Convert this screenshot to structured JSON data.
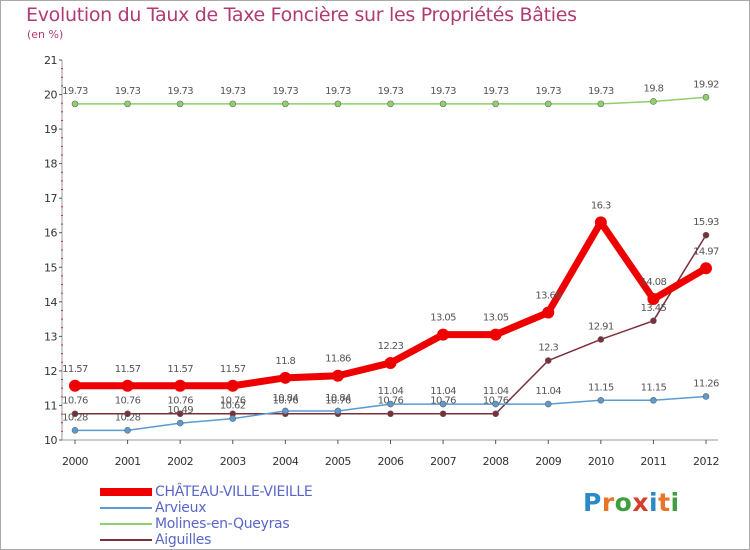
{
  "header": {
    "title": "Evolution du Taux de Taxe Foncière sur les Propriétés Bâties",
    "unit": "(en %)"
  },
  "logo": {
    "text": "Proxiti",
    "letters": [
      "P",
      "r",
      "o",
      "x",
      "i",
      "t",
      "i"
    ],
    "colors": [
      "#2b88c9",
      "#e8742a",
      "#3f9f3f",
      "#d33f2e",
      "#2b88c9",
      "#e8742a",
      "#3f9f3f"
    ]
  },
  "chart_data": {
    "type": "line",
    "title": "Evolution du Taux de Taxe Foncière sur les Propriétés Bâties",
    "ylabel": "(en %)",
    "xlabel": "",
    "x": [
      "2000",
      "2001",
      "2002",
      "2003",
      "2004",
      "2005",
      "2006",
      "2007",
      "2008",
      "2009",
      "2010",
      "2011",
      "2012"
    ],
    "ylim": [
      10,
      21
    ],
    "yticks": [
      "10",
      "11",
      "12",
      "13",
      "14",
      "15",
      "16",
      "17",
      "18",
      "19",
      "20",
      "21"
    ],
    "grid": false,
    "legend_position": "bottom-left",
    "series": [
      {
        "name": "Molines-en-Queyras",
        "color": "#8ed16a",
        "values": [
          19.73,
          19.73,
          19.73,
          19.73,
          19.73,
          19.73,
          19.73,
          19.73,
          19.73,
          19.73,
          19.73,
          19.8,
          19.92
        ],
        "labels": [
          "19.73",
          "19.73",
          "19.73",
          "19.73",
          "19.73",
          "19.73",
          "19.73",
          "19.73",
          "19.73",
          "19.73",
          "19.73",
          "19.8",
          "19.92"
        ]
      },
      {
        "name": "Aiguilles",
        "color": "#7b2f3a",
        "values": [
          10.76,
          10.76,
          10.76,
          10.76,
          10.76,
          10.76,
          10.76,
          10.76,
          10.76,
          12.3,
          12.91,
          13.45,
          15.93
        ],
        "labels": [
          "10.76",
          "10.76",
          "10.76",
          "10.76",
          "10.76",
          "10.76",
          "10.76",
          "10.76",
          "10.76",
          "12.3",
          "12.91",
          "13.45",
          "15.93"
        ]
      },
      {
        "name": "Arvieux",
        "color": "#5b9bd0",
        "values": [
          10.28,
          10.28,
          10.49,
          10.62,
          10.84,
          10.84,
          11.04,
          11.04,
          11.04,
          11.04,
          11.15,
          11.15,
          11.26
        ],
        "labels": [
          "10.28",
          "10.28",
          "10.49",
          "10.62",
          "10.84",
          "10.84",
          "11.04",
          "11.04",
          "11.04",
          "11.04",
          "11.15",
          "11.15",
          "11.26"
        ]
      },
      {
        "name": "CHÂTEAU-VILLE-VIEILLE",
        "color": "#ee0000",
        "values": [
          11.57,
          11.57,
          11.57,
          11.57,
          11.8,
          11.86,
          12.23,
          13.05,
          13.05,
          13.69,
          16.3,
          14.08,
          14.97
        ],
        "labels": [
          "11.57",
          "11.57",
          "11.57",
          "11.57",
          "11.8",
          "11.86",
          "12.23",
          "13.05",
          "13.05",
          "13.69",
          "16.3",
          "14.08",
          "14.97"
        ]
      }
    ]
  },
  "legend": {
    "items": [
      {
        "label": "CHÂTEAU-VILLE-VIEILLE",
        "color": "#ee0000"
      },
      {
        "label": "Arvieux",
        "color": "#5b9bd0"
      },
      {
        "label": "Molines-en-Queyras",
        "color": "#8ed16a"
      },
      {
        "label": "Aiguilles",
        "color": "#7b2f3a"
      }
    ]
  }
}
